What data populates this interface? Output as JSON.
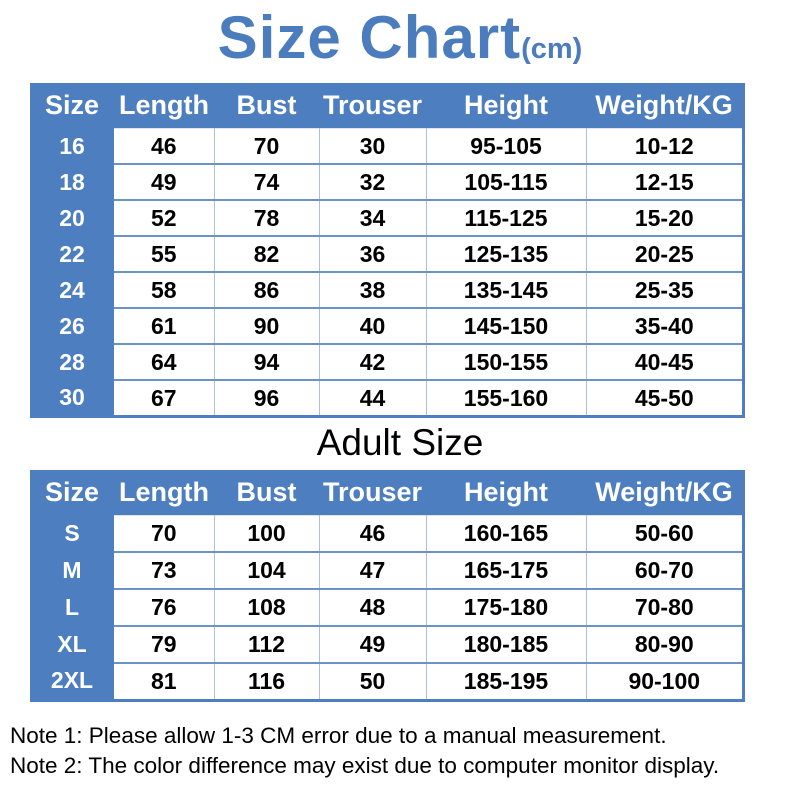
{
  "title": {
    "main": "Size Chart",
    "unit": "(cm)"
  },
  "colors": {
    "accent_blue": "#4d7ebf",
    "title_blue": "#4a7cbe",
    "header_text": "#ffffff",
    "cell_text": "#000000",
    "grid_light_blue": "#aebfd8",
    "grid_blue": "#6b93c8",
    "background": "#ffffff"
  },
  "adult_heading": "Adult Size",
  "notes": [
    "Note 1: Please allow 1-3 CM error due to a manual measurement.",
    "Note 2: The color difference may exist due to computer monitor display."
  ],
  "chart_data": [
    {
      "type": "table",
      "title": "Size Chart (cm)",
      "columns": [
        "Size",
        "Length",
        "Bust",
        "Trouser",
        "Height",
        "Weight/KG"
      ],
      "rows": [
        [
          "16",
          "46",
          "70",
          "30",
          "95-105",
          "10-12"
        ],
        [
          "18",
          "49",
          "74",
          "32",
          "105-115",
          "12-15"
        ],
        [
          "20",
          "52",
          "78",
          "34",
          "115-125",
          "15-20"
        ],
        [
          "22",
          "55",
          "82",
          "36",
          "125-135",
          "20-25"
        ],
        [
          "24",
          "58",
          "86",
          "38",
          "135-145",
          "25-35"
        ],
        [
          "26",
          "61",
          "90",
          "40",
          "145-150",
          "35-40"
        ],
        [
          "28",
          "64",
          "94",
          "42",
          "150-155",
          "40-45"
        ],
        [
          "30",
          "67",
          "96",
          "44",
          "155-160",
          "45-50"
        ]
      ]
    },
    {
      "type": "table",
      "title": "Adult Size",
      "columns": [
        "Size",
        "Length",
        "Bust",
        "Trouser",
        "Height",
        "Weight/KG"
      ],
      "rows": [
        [
          "S",
          "70",
          "100",
          "46",
          "160-165",
          "50-60"
        ],
        [
          "M",
          "73",
          "104",
          "47",
          "165-175",
          "60-70"
        ],
        [
          "L",
          "76",
          "108",
          "48",
          "175-180",
          "70-80"
        ],
        [
          "XL",
          "79",
          "112",
          "49",
          "180-185",
          "80-90"
        ],
        [
          "2XL",
          "81",
          "116",
          "50",
          "185-195",
          "90-100"
        ]
      ]
    }
  ]
}
